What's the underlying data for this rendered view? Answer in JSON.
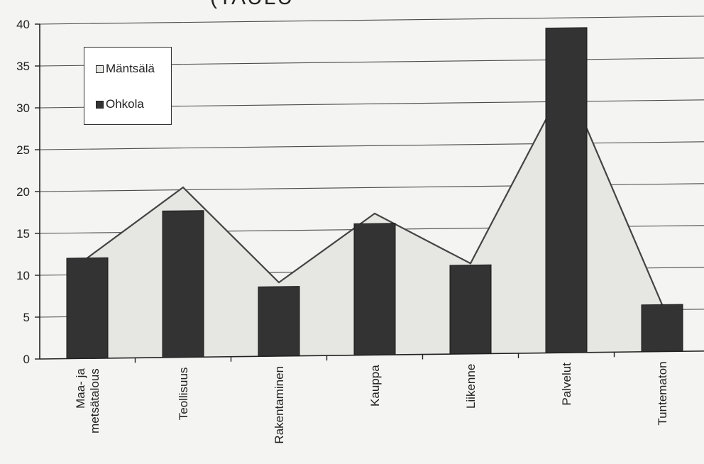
{
  "chart_data": {
    "type": "bar+area",
    "title_fragment": "(TAULU",
    "categories": [
      "Maa- ja metsätalous",
      "Teollisuus",
      "Rakentaminen",
      "Kauppa",
      "Liikenne",
      "Palvelut",
      "Tuntematon"
    ],
    "category_lines": [
      [
        "Maa- ja",
        "metsätalous"
      ],
      [
        "Teollisuus"
      ],
      [
        "Rakentaminen"
      ],
      [
        "Kauppa"
      ],
      [
        "Liikenne"
      ],
      [
        "Palvelut"
      ],
      [
        "Tuntematon"
      ]
    ],
    "series": [
      {
        "name": "Mäntsälä",
        "type": "area",
        "values": [
          12,
          20.3,
          8.8,
          16.9,
          10.8,
          32.5,
          5.6
        ]
      },
      {
        "name": "Ohkola",
        "type": "bar",
        "values": [
          12,
          17.5,
          8.3,
          15.7,
          10.6,
          38.8,
          5.6
        ]
      }
    ],
    "ylim": [
      0,
      40
    ],
    "yticks": [
      0,
      5,
      10,
      15,
      20,
      25,
      30,
      35,
      40
    ],
    "grid": true,
    "legend_position": "top-left",
    "colors": {
      "area_fill": "#e6e6e2",
      "bar_fill": "#333333",
      "line": "#444444"
    }
  },
  "legend": {
    "items": [
      {
        "label": "Mäntsälä",
        "color": "#e6e6e2"
      },
      {
        "label": "Ohkola",
        "color": "#333333"
      }
    ]
  }
}
